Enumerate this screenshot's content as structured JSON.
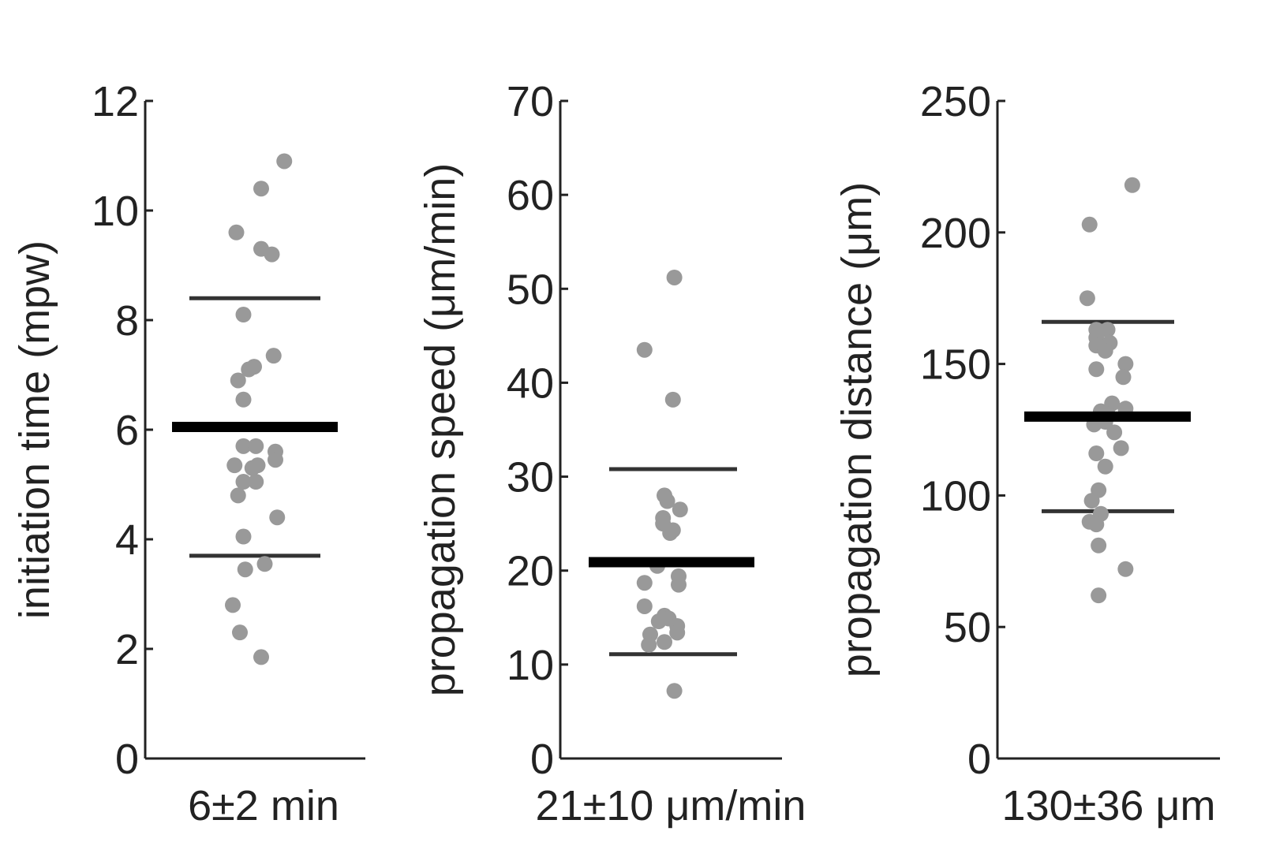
{
  "colors": {
    "axis": "#222222",
    "point": "#999999",
    "mean_line": "#000000",
    "sd_line": "#333333"
  },
  "chart_data": [
    {
      "type": "scatter",
      "ylabel": "initiation time (mpw)",
      "summary": "6±2 min",
      "ylim": [
        0,
        12
      ],
      "yticks": [
        0,
        2,
        4,
        6,
        8,
        10,
        12
      ],
      "grid": false,
      "mean": 6.05,
      "sd_lines": [
        3.7,
        8.4
      ],
      "points": [
        {
          "x": 0.85,
          "y": 10.9
        },
        {
          "x": 0.2,
          "y": 10.4
        },
        {
          "x": -0.5,
          "y": 9.6
        },
        {
          "x": 0.2,
          "y": 9.3
        },
        {
          "x": 0.5,
          "y": 9.2
        },
        {
          "x": -0.3,
          "y": 8.1
        },
        {
          "x": 0.55,
          "y": 7.35
        },
        {
          "x": -0.15,
          "y": 7.1
        },
        {
          "x": 0.0,
          "y": 7.15
        },
        {
          "x": -0.45,
          "y": 6.9
        },
        {
          "x": -0.3,
          "y": 6.55
        },
        {
          "x": -0.3,
          "y": 5.7
        },
        {
          "x": 0.05,
          "y": 5.7
        },
        {
          "x": 0.6,
          "y": 5.6
        },
        {
          "x": 0.6,
          "y": 5.45
        },
        {
          "x": -0.55,
          "y": 5.35
        },
        {
          "x": -0.05,
          "y": 5.3
        },
        {
          "x": 0.1,
          "y": 5.35
        },
        {
          "x": -0.3,
          "y": 5.05
        },
        {
          "x": 0.05,
          "y": 5.05
        },
        {
          "x": -0.45,
          "y": 4.8
        },
        {
          "x": 0.65,
          "y": 4.4
        },
        {
          "x": -0.3,
          "y": 4.05
        },
        {
          "x": -0.25,
          "y": 3.45
        },
        {
          "x": 0.3,
          "y": 3.55
        },
        {
          "x": -0.6,
          "y": 2.8
        },
        {
          "x": -0.4,
          "y": 2.3
        },
        {
          "x": 0.2,
          "y": 1.85
        }
      ]
    },
    {
      "type": "scatter",
      "ylabel": "propagation speed (μm/min)",
      "summary": "21±10 μm/min",
      "ylim": [
        0,
        70
      ],
      "yticks": [
        0,
        10,
        20,
        30,
        40,
        50,
        60,
        70
      ],
      "grid": false,
      "mean": 20.9,
      "sd_lines": [
        11.1,
        30.8
      ],
      "points": [
        {
          "x": 0.35,
          "y": 51.2
        },
        {
          "x": -0.7,
          "y": 43.5
        },
        {
          "x": 0.3,
          "y": 38.2
        },
        {
          "x": 0.0,
          "y": 28.0
        },
        {
          "x": 0.1,
          "y": 27.4
        },
        {
          "x": 0.55,
          "y": 26.5
        },
        {
          "x": -0.05,
          "y": 25.6
        },
        {
          "x": -0.05,
          "y": 25.0
        },
        {
          "x": 0.2,
          "y": 24.0
        },
        {
          "x": 0.3,
          "y": 24.3
        },
        {
          "x": -0.25,
          "y": 20.5
        },
        {
          "x": 0.5,
          "y": 19.4
        },
        {
          "x": 0.5,
          "y": 18.5
        },
        {
          "x": -0.7,
          "y": 18.7
        },
        {
          "x": -0.7,
          "y": 16.2
        },
        {
          "x": 0.0,
          "y": 15.2
        },
        {
          "x": 0.15,
          "y": 14.9
        },
        {
          "x": 0.45,
          "y": 14.1
        },
        {
          "x": -0.2,
          "y": 14.6
        },
        {
          "x": 0.45,
          "y": 13.4
        },
        {
          "x": -0.5,
          "y": 13.2
        },
        {
          "x": 0.0,
          "y": 12.4
        },
        {
          "x": -0.55,
          "y": 12.1
        },
        {
          "x": 0.35,
          "y": 7.2
        }
      ]
    },
    {
      "type": "scatter",
      "ylabel": "propagation distance (μm)",
      "summary": "130±36 μm",
      "ylim": [
        0,
        250
      ],
      "yticks": [
        0,
        50,
        100,
        150,
        200,
        250
      ],
      "grid": false,
      "mean": 130,
      "sd_lines": [
        94,
        166
      ],
      "points": [
        {
          "x": 0.7,
          "y": 218
        },
        {
          "x": -0.25,
          "y": 203
        },
        {
          "x": -0.3,
          "y": 175
        },
        {
          "x": -0.1,
          "y": 163
        },
        {
          "x": 0.15,
          "y": 163
        },
        {
          "x": -0.1,
          "y": 160
        },
        {
          "x": 0.2,
          "y": 158
        },
        {
          "x": -0.1,
          "y": 157
        },
        {
          "x": 0.1,
          "y": 155
        },
        {
          "x": 0.55,
          "y": 150
        },
        {
          "x": -0.1,
          "y": 148
        },
        {
          "x": 0.5,
          "y": 145
        },
        {
          "x": 0.25,
          "y": 135
        },
        {
          "x": 0.55,
          "y": 133
        },
        {
          "x": 0.0,
          "y": 132
        },
        {
          "x": 0.15,
          "y": 131
        },
        {
          "x": -0.15,
          "y": 127
        },
        {
          "x": 0.1,
          "y": 128
        },
        {
          "x": 0.3,
          "y": 124
        },
        {
          "x": 0.45,
          "y": 118
        },
        {
          "x": -0.1,
          "y": 116
        },
        {
          "x": 0.1,
          "y": 111
        },
        {
          "x": -0.05,
          "y": 102
        },
        {
          "x": -0.2,
          "y": 98
        },
        {
          "x": 0.0,
          "y": 93
        },
        {
          "x": -0.25,
          "y": 90
        },
        {
          "x": -0.1,
          "y": 89
        },
        {
          "x": -0.05,
          "y": 81
        },
        {
          "x": 0.55,
          "y": 72
        },
        {
          "x": -0.05,
          "y": 62
        }
      ]
    }
  ]
}
